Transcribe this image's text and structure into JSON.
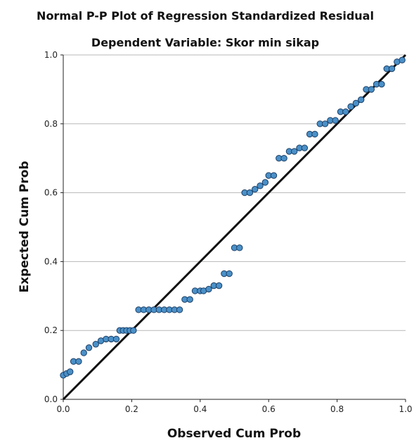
{
  "chart_data": {
    "type": "scatter",
    "title": "Normal P-P Plot of Regression Standardized Residual",
    "subtitle": "Dependent Variable: Skor min sikap",
    "xlabel": "Observed Cum Prob",
    "ylabel": "Expected Cum Prob",
    "xlim": [
      0.0,
      1.0
    ],
    "ylim": [
      0.0,
      1.0
    ],
    "x_ticks": [
      "0.0",
      "0.2",
      "0.4",
      "0.6",
      "0.8",
      "1.0"
    ],
    "y_ticks": [
      "0.0",
      "0.2",
      "0.4",
      "0.6",
      "0.8",
      "1.0"
    ],
    "grid": "horizontal",
    "reference_line": {
      "from": [
        0,
        0
      ],
      "to": [
        1,
        1
      ]
    },
    "series": [
      {
        "marker_color": "#4a90c8",
        "marker_edge": "#1c3f66",
        "x": [
          0.0,
          0.01,
          0.02,
          0.03,
          0.045,
          0.06,
          0.075,
          0.095,
          0.11,
          0.125,
          0.14,
          0.155,
          0.165,
          0.175,
          0.185,
          0.195,
          0.205,
          0.22,
          0.235,
          0.25,
          0.265,
          0.28,
          0.295,
          0.31,
          0.325,
          0.34,
          0.355,
          0.37,
          0.385,
          0.4,
          0.41,
          0.425,
          0.44,
          0.455,
          0.47,
          0.485,
          0.5,
          0.515,
          0.53,
          0.545,
          0.56,
          0.575,
          0.59,
          0.6,
          0.615,
          0.63,
          0.645,
          0.66,
          0.675,
          0.69,
          0.705,
          0.72,
          0.735,
          0.75,
          0.765,
          0.78,
          0.795,
          0.81,
          0.825,
          0.84,
          0.855,
          0.87,
          0.885,
          0.9,
          0.915,
          0.93,
          0.945,
          0.96,
          0.975,
          0.99
        ],
        "y": [
          0.07,
          0.075,
          0.08,
          0.11,
          0.11,
          0.135,
          0.15,
          0.16,
          0.17,
          0.175,
          0.175,
          0.175,
          0.2,
          0.2,
          0.2,
          0.2,
          0.2,
          0.26,
          0.26,
          0.26,
          0.26,
          0.26,
          0.26,
          0.26,
          0.26,
          0.26,
          0.29,
          0.29,
          0.315,
          0.315,
          0.315,
          0.32,
          0.33,
          0.33,
          0.365,
          0.365,
          0.44,
          0.44,
          0.6,
          0.6,
          0.61,
          0.62,
          0.63,
          0.65,
          0.65,
          0.7,
          0.7,
          0.72,
          0.72,
          0.73,
          0.73,
          0.77,
          0.77,
          0.8,
          0.8,
          0.81,
          0.81,
          0.835,
          0.835,
          0.85,
          0.86,
          0.87,
          0.9,
          0.9,
          0.915,
          0.915,
          0.96,
          0.96,
          0.98,
          0.985
        ]
      }
    ]
  }
}
